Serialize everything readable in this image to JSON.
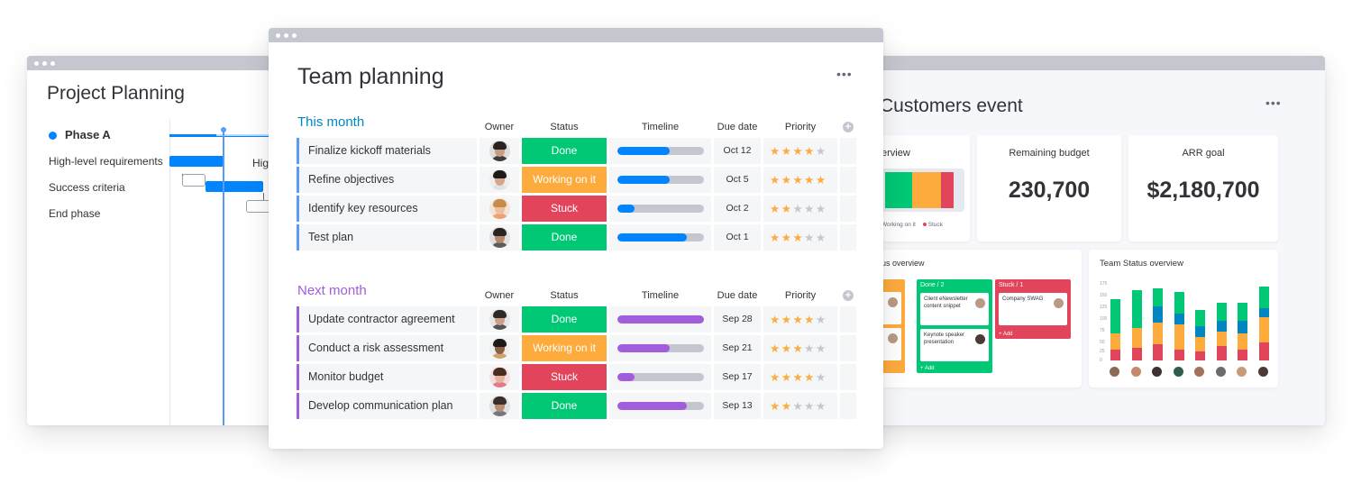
{
  "left_window": {
    "title": "Project Planning",
    "phase": "Phase A",
    "tasks": [
      "High-level requirements",
      "Success criteria",
      "End phase"
    ],
    "gantt_text": "Hig"
  },
  "center_window": {
    "title": "Team planning",
    "more": "•••",
    "columns": {
      "owner": "Owner",
      "status": "Status",
      "timeline": "Timeline",
      "due": "Due date",
      "priority": "Priority"
    },
    "add_column": "+",
    "groups": [
      {
        "name": "This month",
        "color": "#0086c0",
        "accent": "#579bfc",
        "rows": [
          {
            "name": "Finalize kickoff materials",
            "status": "Done",
            "status_color": "#00c875",
            "timeline": 0.6,
            "due": "Oct 12",
            "priority": 4
          },
          {
            "name": "Refine objectives",
            "status": "Working on it",
            "status_color": "#fdab3d",
            "timeline": 0.6,
            "due": "Oct 5",
            "priority": 5
          },
          {
            "name": "Identify key resources",
            "status": "Stuck",
            "status_color": "#e2445c",
            "timeline": 0.2,
            "due": "Oct 2",
            "priority": 2
          },
          {
            "name": "Test plan",
            "status": "Done",
            "status_color": "#00c875",
            "timeline": 0.8,
            "due": "Oct 1",
            "priority": 3
          }
        ]
      },
      {
        "name": "Next month",
        "color": "#a25ddc",
        "accent": "#a25ddc",
        "rows": [
          {
            "name": "Update contractor agreement",
            "status": "Done",
            "status_color": "#00c875",
            "timeline": 1.0,
            "due": "Sep 28",
            "priority": 4
          },
          {
            "name": "Conduct a risk assessment",
            "status": "Working on it",
            "status_color": "#fdab3d",
            "timeline": 0.6,
            "due": "Sep 21",
            "priority": 3
          },
          {
            "name": "Monitor budget",
            "status": "Stuck",
            "status_color": "#e2445c",
            "timeline": 0.2,
            "due": "Sep 17",
            "priority": 4
          },
          {
            "name": "Develop communication plan",
            "status": "Done",
            "status_color": "#00c875",
            "timeline": 0.8,
            "due": "Sep 13",
            "priority": 2
          }
        ]
      }
    ]
  },
  "right_window": {
    "title": "Customers event",
    "more": "•••",
    "overview_title": "erview",
    "overview_legend": [
      "Working on it",
      "Stuck"
    ],
    "budget_title": "Remaining budget",
    "budget_value": "230,700",
    "arr_title": "ARR goal",
    "arr_value": "$2,180,700",
    "status_overview_title": "us overview",
    "kanban": {
      "done_head": "Done / 2",
      "stuck_head": "Stuck / 1",
      "cards": [
        "Client eNewsletter content snippet",
        "Keynote speaker presentation",
        "Company SWAG"
      ],
      "add": "+ Add"
    },
    "team_status_title": "Team Status overview",
    "team_status_ylabels": [
      "175",
      "150",
      "125",
      "100",
      "75",
      "50",
      "25",
      "0"
    ]
  },
  "colors": {
    "done": "#00c875",
    "working": "#fdab3d",
    "stuck": "#e2445c",
    "blue": "#0085ff",
    "purple": "#a25ddc"
  }
}
